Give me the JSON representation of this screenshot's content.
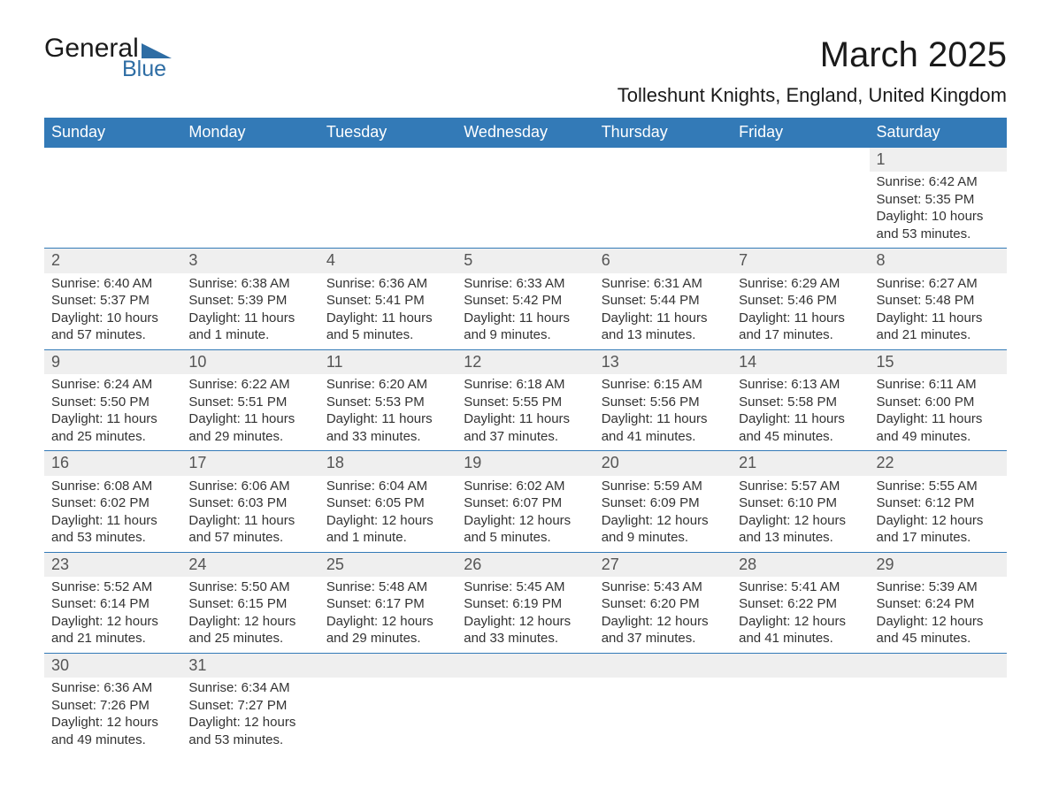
{
  "logo": {
    "text1": "General",
    "text2": "Blue",
    "tri_color": "#2e6da4"
  },
  "title": "March 2025",
  "location": "Tolleshunt Knights, England, United Kingdom",
  "colors": {
    "header_bg": "#337ab7",
    "header_fg": "#ffffff",
    "stripe": "#efefef"
  },
  "day_headers": [
    "Sunday",
    "Monday",
    "Tuesday",
    "Wednesday",
    "Thursday",
    "Friday",
    "Saturday"
  ],
  "weeks": [
    [
      null,
      null,
      null,
      null,
      null,
      null,
      {
        "n": "1",
        "sr": "Sunrise: 6:42 AM",
        "ss": "Sunset: 5:35 PM",
        "dl": "Daylight: 10 hours and 53 minutes."
      }
    ],
    [
      {
        "n": "2",
        "sr": "Sunrise: 6:40 AM",
        "ss": "Sunset: 5:37 PM",
        "dl": "Daylight: 10 hours and 57 minutes."
      },
      {
        "n": "3",
        "sr": "Sunrise: 6:38 AM",
        "ss": "Sunset: 5:39 PM",
        "dl": "Daylight: 11 hours and 1 minute."
      },
      {
        "n": "4",
        "sr": "Sunrise: 6:36 AM",
        "ss": "Sunset: 5:41 PM",
        "dl": "Daylight: 11 hours and 5 minutes."
      },
      {
        "n": "5",
        "sr": "Sunrise: 6:33 AM",
        "ss": "Sunset: 5:42 PM",
        "dl": "Daylight: 11 hours and 9 minutes."
      },
      {
        "n": "6",
        "sr": "Sunrise: 6:31 AM",
        "ss": "Sunset: 5:44 PM",
        "dl": "Daylight: 11 hours and 13 minutes."
      },
      {
        "n": "7",
        "sr": "Sunrise: 6:29 AM",
        "ss": "Sunset: 5:46 PM",
        "dl": "Daylight: 11 hours and 17 minutes."
      },
      {
        "n": "8",
        "sr": "Sunrise: 6:27 AM",
        "ss": "Sunset: 5:48 PM",
        "dl": "Daylight: 11 hours and 21 minutes."
      }
    ],
    [
      {
        "n": "9",
        "sr": "Sunrise: 6:24 AM",
        "ss": "Sunset: 5:50 PM",
        "dl": "Daylight: 11 hours and 25 minutes."
      },
      {
        "n": "10",
        "sr": "Sunrise: 6:22 AM",
        "ss": "Sunset: 5:51 PM",
        "dl": "Daylight: 11 hours and 29 minutes."
      },
      {
        "n": "11",
        "sr": "Sunrise: 6:20 AM",
        "ss": "Sunset: 5:53 PM",
        "dl": "Daylight: 11 hours and 33 minutes."
      },
      {
        "n": "12",
        "sr": "Sunrise: 6:18 AM",
        "ss": "Sunset: 5:55 PM",
        "dl": "Daylight: 11 hours and 37 minutes."
      },
      {
        "n": "13",
        "sr": "Sunrise: 6:15 AM",
        "ss": "Sunset: 5:56 PM",
        "dl": "Daylight: 11 hours and 41 minutes."
      },
      {
        "n": "14",
        "sr": "Sunrise: 6:13 AM",
        "ss": "Sunset: 5:58 PM",
        "dl": "Daylight: 11 hours and 45 minutes."
      },
      {
        "n": "15",
        "sr": "Sunrise: 6:11 AM",
        "ss": "Sunset: 6:00 PM",
        "dl": "Daylight: 11 hours and 49 minutes."
      }
    ],
    [
      {
        "n": "16",
        "sr": "Sunrise: 6:08 AM",
        "ss": "Sunset: 6:02 PM",
        "dl": "Daylight: 11 hours and 53 minutes."
      },
      {
        "n": "17",
        "sr": "Sunrise: 6:06 AM",
        "ss": "Sunset: 6:03 PM",
        "dl": "Daylight: 11 hours and 57 minutes."
      },
      {
        "n": "18",
        "sr": "Sunrise: 6:04 AM",
        "ss": "Sunset: 6:05 PM",
        "dl": "Daylight: 12 hours and 1 minute."
      },
      {
        "n": "19",
        "sr": "Sunrise: 6:02 AM",
        "ss": "Sunset: 6:07 PM",
        "dl": "Daylight: 12 hours and 5 minutes."
      },
      {
        "n": "20",
        "sr": "Sunrise: 5:59 AM",
        "ss": "Sunset: 6:09 PM",
        "dl": "Daylight: 12 hours and 9 minutes."
      },
      {
        "n": "21",
        "sr": "Sunrise: 5:57 AM",
        "ss": "Sunset: 6:10 PM",
        "dl": "Daylight: 12 hours and 13 minutes."
      },
      {
        "n": "22",
        "sr": "Sunrise: 5:55 AM",
        "ss": "Sunset: 6:12 PM",
        "dl": "Daylight: 12 hours and 17 minutes."
      }
    ],
    [
      {
        "n": "23",
        "sr": "Sunrise: 5:52 AM",
        "ss": "Sunset: 6:14 PM",
        "dl": "Daylight: 12 hours and 21 minutes."
      },
      {
        "n": "24",
        "sr": "Sunrise: 5:50 AM",
        "ss": "Sunset: 6:15 PM",
        "dl": "Daylight: 12 hours and 25 minutes."
      },
      {
        "n": "25",
        "sr": "Sunrise: 5:48 AM",
        "ss": "Sunset: 6:17 PM",
        "dl": "Daylight: 12 hours and 29 minutes."
      },
      {
        "n": "26",
        "sr": "Sunrise: 5:45 AM",
        "ss": "Sunset: 6:19 PM",
        "dl": "Daylight: 12 hours and 33 minutes."
      },
      {
        "n": "27",
        "sr": "Sunrise: 5:43 AM",
        "ss": "Sunset: 6:20 PM",
        "dl": "Daylight: 12 hours and 37 minutes."
      },
      {
        "n": "28",
        "sr": "Sunrise: 5:41 AM",
        "ss": "Sunset: 6:22 PM",
        "dl": "Daylight: 12 hours and 41 minutes."
      },
      {
        "n": "29",
        "sr": "Sunrise: 5:39 AM",
        "ss": "Sunset: 6:24 PM",
        "dl": "Daylight: 12 hours and 45 minutes."
      }
    ],
    [
      {
        "n": "30",
        "sr": "Sunrise: 6:36 AM",
        "ss": "Sunset: 7:26 PM",
        "dl": "Daylight: 12 hours and 49 minutes."
      },
      {
        "n": "31",
        "sr": "Sunrise: 6:34 AM",
        "ss": "Sunset: 7:27 PM",
        "dl": "Daylight: 12 hours and 53 minutes."
      },
      null,
      null,
      null,
      null,
      null
    ]
  ]
}
